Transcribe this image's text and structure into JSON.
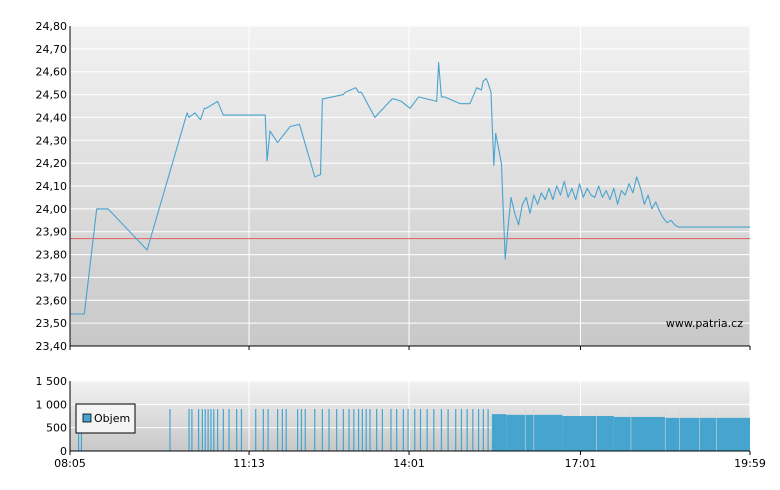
{
  "watermark": "www.patria.cz",
  "colors": {
    "line": "#4aa3cf",
    "reference": "#e06060",
    "volume": "#45a5cf",
    "grid": "#ffffff",
    "axis": "#000000"
  },
  "chart_data": [
    {
      "type": "line",
      "title": "",
      "xlabel": "",
      "ylabel": "",
      "x_ticks": [
        "08:05",
        "11:13",
        "14:01",
        "17:01",
        "19:59"
      ],
      "y_ticks": [
        "23,40",
        "23,50",
        "23,60",
        "23,70",
        "23,80",
        "23,90",
        "24,00",
        "24,10",
        "24,20",
        "24,30",
        "24,40",
        "24,50",
        "24,60",
        "24,70",
        "24,80"
      ],
      "ylim": [
        23.4,
        24.8
      ],
      "xlim": [
        "08:05",
        "19:59"
      ],
      "grid": true,
      "reference_line": 23.87,
      "series": [
        {
          "x": [
            "08:05",
            "08:20",
            "08:33",
            "08:45",
            "09:26",
            "10:08",
            "10:10",
            "10:16",
            "10:22",
            "10:26",
            "10:28",
            "10:40",
            "10:46",
            "11:13",
            "11:30",
            "11:32",
            "11:35",
            "11:43",
            "11:56",
            "12:06",
            "12:22",
            "12:28",
            "12:30",
            "12:52",
            "12:54",
            "13:05",
            "13:08",
            "13:11",
            "13:25",
            "13:43",
            "13:46",
            "13:53",
            "14:02",
            "14:11",
            "14:30",
            "14:32",
            "14:35",
            "14:38",
            "14:55",
            "15:05",
            "15:12",
            "15:17",
            "15:19",
            "15:22",
            "15:24",
            "15:27",
            "15:30",
            "15:32",
            "15:38",
            "15:42",
            "15:45",
            "15:48",
            "15:52",
            "15:56",
            "16:00",
            "16:04",
            "16:08",
            "16:12",
            "16:16",
            "16:20",
            "16:24",
            "16:28",
            "16:32",
            "16:36",
            "16:40",
            "16:44",
            "16:48",
            "16:52",
            "16:56",
            "17:00",
            "17:04",
            "17:08",
            "17:12",
            "17:16",
            "17:20",
            "17:24",
            "17:28",
            "17:32",
            "17:36",
            "17:40",
            "17:44",
            "17:48",
            "17:52",
            "17:56",
            "18:00",
            "18:04",
            "18:08",
            "18:12",
            "18:16",
            "18:20",
            "18:24",
            "18:28",
            "18:32",
            "18:36",
            "18:40",
            "18:44",
            "18:50",
            "19:59"
          ],
          "y": [
            23.54,
            23.54,
            24.0,
            24.0,
            23.82,
            24.42,
            24.4,
            24.42,
            24.39,
            24.44,
            24.44,
            24.47,
            24.41,
            24.41,
            24.41,
            24.21,
            24.34,
            24.29,
            24.36,
            24.37,
            24.14,
            24.15,
            24.48,
            24.5,
            24.51,
            24.53,
            24.51,
            24.51,
            24.4,
            24.48,
            24.48,
            24.47,
            24.44,
            24.49,
            24.47,
            24.64,
            24.49,
            24.49,
            24.46,
            24.46,
            24.53,
            24.52,
            24.56,
            24.57,
            24.55,
            24.51,
            24.19,
            24.33,
            24.2,
            23.78,
            23.92,
            24.05,
            23.98,
            23.93,
            24.02,
            24.05,
            23.98,
            24.06,
            24.02,
            24.07,
            24.04,
            24.09,
            24.04,
            24.1,
            24.06,
            24.12,
            24.05,
            24.09,
            24.04,
            24.11,
            24.05,
            24.09,
            24.06,
            24.05,
            24.1,
            24.05,
            24.08,
            24.04,
            24.09,
            24.02,
            24.08,
            24.06,
            24.11,
            24.07,
            24.14,
            24.09,
            24.02,
            24.06,
            24.0,
            24.03,
            23.99,
            23.96,
            23.94,
            23.95,
            23.93,
            23.92,
            23.92,
            23.92
          ]
        }
      ]
    },
    {
      "type": "bar",
      "title": "",
      "xlabel": "",
      "ylabel": "",
      "y_ticks": [
        "0",
        "500",
        "1 000",
        "1 500"
      ],
      "ylim": [
        0,
        1500
      ],
      "x_ticks": [
        "08:05",
        "11:13",
        "14:01",
        "17:01",
        "19:59"
      ],
      "legend": {
        "position": "left",
        "label": "Objem"
      },
      "grid": true,
      "bars": [
        {
          "time": "08:14",
          "value": 900
        },
        {
          "time": "08:17",
          "value": 900
        },
        {
          "time": "09:50",
          "value": 900
        },
        {
          "time": "10:10",
          "value": 900
        },
        {
          "time": "10:13",
          "value": 900
        },
        {
          "time": "10:20",
          "value": 900
        },
        {
          "time": "10:24",
          "value": 900
        },
        {
          "time": "10:27",
          "value": 900
        },
        {
          "time": "10:30",
          "value": 900
        },
        {
          "time": "10:33",
          "value": 900
        },
        {
          "time": "10:36",
          "value": 900
        },
        {
          "time": "10:40",
          "value": 900
        },
        {
          "time": "10:46",
          "value": 900
        },
        {
          "time": "10:52",
          "value": 900
        },
        {
          "time": "11:00",
          "value": 900
        },
        {
          "time": "11:05",
          "value": 900
        },
        {
          "time": "11:20",
          "value": 900
        },
        {
          "time": "11:28",
          "value": 900
        },
        {
          "time": "11:33",
          "value": 900
        },
        {
          "time": "11:43",
          "value": 900
        },
        {
          "time": "11:48",
          "value": 900
        },
        {
          "time": "11:52",
          "value": 900
        },
        {
          "time": "12:04",
          "value": 900
        },
        {
          "time": "12:08",
          "value": 900
        },
        {
          "time": "12:12",
          "value": 900
        },
        {
          "time": "12:22",
          "value": 900
        },
        {
          "time": "12:30",
          "value": 900
        },
        {
          "time": "12:37",
          "value": 900
        },
        {
          "time": "12:45",
          "value": 900
        },
        {
          "time": "12:52",
          "value": 900
        },
        {
          "time": "12:58",
          "value": 900
        },
        {
          "time": "13:03",
          "value": 900
        },
        {
          "time": "13:08",
          "value": 900
        },
        {
          "time": "13:12",
          "value": 900
        },
        {
          "time": "13:16",
          "value": 900
        },
        {
          "time": "13:20",
          "value": 900
        },
        {
          "time": "13:27",
          "value": 900
        },
        {
          "time": "13:33",
          "value": 900
        },
        {
          "time": "13:42",
          "value": 900
        },
        {
          "time": "13:48",
          "value": 900
        },
        {
          "time": "13:55",
          "value": 900
        },
        {
          "time": "14:00",
          "value": 900
        },
        {
          "time": "14:07",
          "value": 900
        },
        {
          "time": "14:13",
          "value": 900
        },
        {
          "time": "14:20",
          "value": 900
        },
        {
          "time": "14:27",
          "value": 900
        },
        {
          "time": "14:35",
          "value": 900
        },
        {
          "time": "14:42",
          "value": 900
        },
        {
          "time": "14:50",
          "value": 900
        },
        {
          "time": "14:56",
          "value": 900
        },
        {
          "time": "15:02",
          "value": 900
        },
        {
          "time": "15:08",
          "value": 900
        },
        {
          "time": "15:14",
          "value": 900
        },
        {
          "time": "15:19",
          "value": 900
        },
        {
          "time": "15:24",
          "value": 900
        }
      ],
      "continuous_blocks": [
        {
          "from": "15:28",
          "to": "15:43",
          "value": 790
        },
        {
          "from": "15:43",
          "to": "16:42",
          "value": 775
        },
        {
          "from": "16:42",
          "to": "17:36",
          "value": 750
        },
        {
          "from": "17:36",
          "to": "18:30",
          "value": 730
        },
        {
          "from": "18:30",
          "to": "19:59",
          "value": 710
        }
      ]
    }
  ]
}
